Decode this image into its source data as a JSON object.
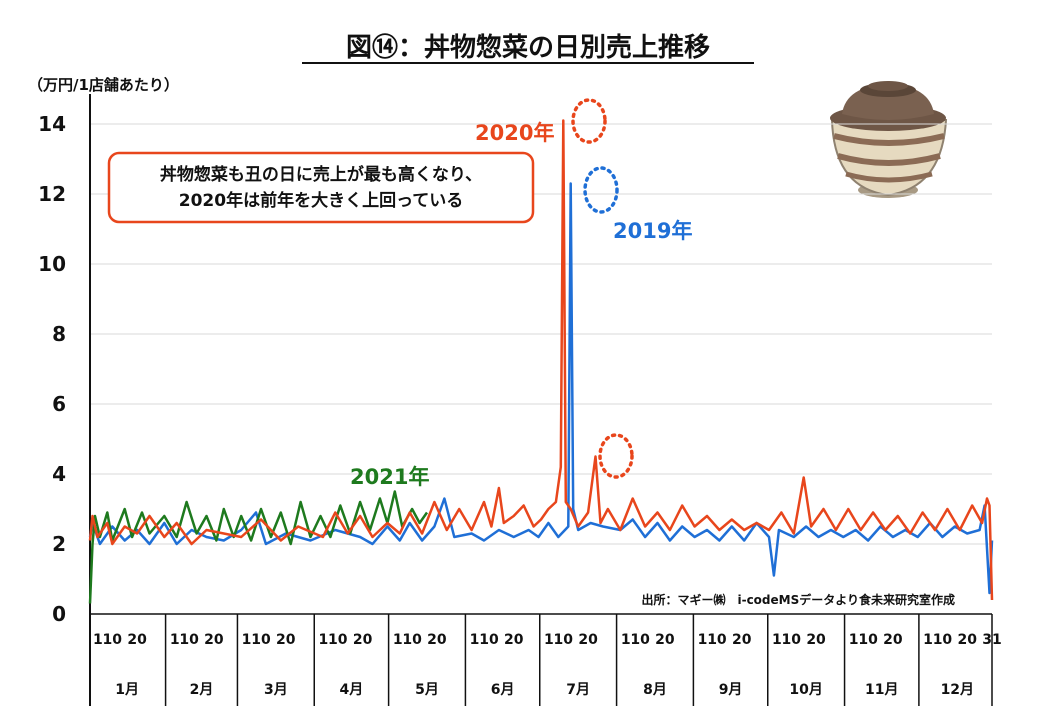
{
  "chart_data": {
    "type": "line",
    "title": "図⑭：丼物惣菜の日別売上推移",
    "unit_label": "（万円/1店舗あたり）",
    "ylim": [
      0,
      14
    ],
    "yticks": [
      "0",
      "2",
      "4",
      "6",
      "8",
      "10",
      "12",
      "14"
    ],
    "x_day_labels": [
      "1",
      "10",
      "20"
    ],
    "x_end_label": "31",
    "months": [
      "1月",
      "2月",
      "3月",
      "4月",
      "5月",
      "6月",
      "7月",
      "8月",
      "9月",
      "10月",
      "11月",
      "12月"
    ],
    "grid": true,
    "series": [
      {
        "name": "2020年",
        "color": "#e8461c",
        "points": [
          [
            1,
            2.1
          ],
          [
            2,
            2.8
          ],
          [
            4,
            2.2
          ],
          [
            8,
            2.6
          ],
          [
            10,
            2.0
          ],
          [
            15,
            2.5
          ],
          [
            20,
            2.3
          ],
          [
            25,
            2.8
          ],
          [
            31,
            2.2
          ],
          [
            36,
            2.6
          ],
          [
            42,
            2.0
          ],
          [
            48,
            2.4
          ],
          [
            55,
            2.3
          ],
          [
            62,
            2.2
          ],
          [
            70,
            2.7
          ],
          [
            78,
            2.1
          ],
          [
            85,
            2.5
          ],
          [
            95,
            2.2
          ],
          [
            100,
            2.9
          ],
          [
            105,
            2.3
          ],
          [
            110,
            2.8
          ],
          [
            115,
            2.2
          ],
          [
            121,
            2.6
          ],
          [
            126,
            2.3
          ],
          [
            130,
            2.9
          ],
          [
            135,
            2.3
          ],
          [
            140,
            3.2
          ],
          [
            145,
            2.4
          ],
          [
            150,
            3.0
          ],
          [
            155,
            2.4
          ],
          [
            160,
            3.2
          ],
          [
            163,
            2.5
          ],
          [
            166,
            3.6
          ],
          [
            168,
            2.6
          ],
          [
            172,
            2.8
          ],
          [
            176,
            3.1
          ],
          [
            180,
            2.5
          ],
          [
            183,
            2.7
          ],
          [
            186,
            3.0
          ],
          [
            189,
            3.2
          ],
          [
            191,
            4.2
          ],
          [
            192,
            14.1
          ],
          [
            193,
            3.2
          ],
          [
            195,
            3.0
          ],
          [
            198,
            2.5
          ],
          [
            202,
            2.9
          ],
          [
            205,
            4.5
          ],
          [
            207,
            2.6
          ],
          [
            210,
            3.0
          ],
          [
            215,
            2.4
          ],
          [
            220,
            3.3
          ],
          [
            225,
            2.5
          ],
          [
            230,
            2.9
          ],
          [
            235,
            2.4
          ],
          [
            240,
            3.1
          ],
          [
            245,
            2.5
          ],
          [
            250,
            2.8
          ],
          [
            255,
            2.4
          ],
          [
            260,
            2.7
          ],
          [
            265,
            2.4
          ],
          [
            270,
            2.6
          ],
          [
            275,
            2.4
          ],
          [
            280,
            2.9
          ],
          [
            285,
            2.3
          ],
          [
            289,
            3.9
          ],
          [
            292,
            2.5
          ],
          [
            297,
            3.0
          ],
          [
            302,
            2.4
          ],
          [
            307,
            3.0
          ],
          [
            312,
            2.4
          ],
          [
            317,
            2.9
          ],
          [
            322,
            2.4
          ],
          [
            327,
            2.8
          ],
          [
            332,
            2.3
          ],
          [
            337,
            2.9
          ],
          [
            342,
            2.4
          ],
          [
            347,
            3.0
          ],
          [
            352,
            2.4
          ],
          [
            357,
            3.1
          ],
          [
            361,
            2.6
          ],
          [
            363,
            3.3
          ],
          [
            364,
            3.1
          ],
          [
            365,
            0.4
          ]
        ]
      },
      {
        "name": "2019年",
        "color": "#1f6fd6",
        "points": [
          [
            1,
            2.2
          ],
          [
            2,
            2.6
          ],
          [
            5,
            2.0
          ],
          [
            10,
            2.5
          ],
          [
            15,
            2.1
          ],
          [
            20,
            2.4
          ],
          [
            25,
            2.0
          ],
          [
            31,
            2.6
          ],
          [
            36,
            2.0
          ],
          [
            42,
            2.4
          ],
          [
            48,
            2.2
          ],
          [
            55,
            2.1
          ],
          [
            62,
            2.4
          ],
          [
            68,
            2.9
          ],
          [
            72,
            2.0
          ],
          [
            80,
            2.3
          ],
          [
            90,
            2.1
          ],
          [
            100,
            2.4
          ],
          [
            110,
            2.2
          ],
          [
            115,
            2.0
          ],
          [
            121,
            2.5
          ],
          [
            126,
            2.1
          ],
          [
            130,
            2.6
          ],
          [
            135,
            2.1
          ],
          [
            140,
            2.5
          ],
          [
            144,
            3.3
          ],
          [
            148,
            2.2
          ],
          [
            155,
            2.3
          ],
          [
            160,
            2.1
          ],
          [
            166,
            2.4
          ],
          [
            172,
            2.2
          ],
          [
            178,
            2.4
          ],
          [
            182,
            2.2
          ],
          [
            186,
            2.6
          ],
          [
            190,
            2.2
          ],
          [
            194,
            2.5
          ],
          [
            195,
            12.3
          ],
          [
            196,
            3.0
          ],
          [
            198,
            2.4
          ],
          [
            203,
            2.6
          ],
          [
            208,
            2.5
          ],
          [
            215,
            2.4
          ],
          [
            220,
            2.7
          ],
          [
            225,
            2.2
          ],
          [
            230,
            2.6
          ],
          [
            235,
            2.1
          ],
          [
            240,
            2.5
          ],
          [
            245,
            2.2
          ],
          [
            250,
            2.4
          ],
          [
            255,
            2.1
          ],
          [
            260,
            2.5
          ],
          [
            265,
            2.1
          ],
          [
            270,
            2.6
          ],
          [
            275,
            2.2
          ],
          [
            277,
            1.1
          ],
          [
            279,
            2.4
          ],
          [
            285,
            2.2
          ],
          [
            290,
            2.5
          ],
          [
            295,
            2.2
          ],
          [
            300,
            2.4
          ],
          [
            305,
            2.2
          ],
          [
            310,
            2.4
          ],
          [
            315,
            2.1
          ],
          [
            320,
            2.5
          ],
          [
            325,
            2.2
          ],
          [
            330,
            2.4
          ],
          [
            335,
            2.2
          ],
          [
            340,
            2.6
          ],
          [
            345,
            2.2
          ],
          [
            350,
            2.5
          ],
          [
            355,
            2.3
          ],
          [
            360,
            2.4
          ],
          [
            362,
            3.1
          ],
          [
            364,
            0.6
          ],
          [
            365,
            2.1
          ]
        ]
      },
      {
        "name": "2021年",
        "color": "#1e7a1e",
        "points": [
          [
            1,
            0.3
          ],
          [
            2,
            2.0
          ],
          [
            3,
            2.8
          ],
          [
            5,
            2.2
          ],
          [
            8,
            2.9
          ],
          [
            10,
            2.1
          ],
          [
            15,
            3.0
          ],
          [
            18,
            2.2
          ],
          [
            22,
            2.9
          ],
          [
            25,
            2.3
          ],
          [
            31,
            2.8
          ],
          [
            36,
            2.2
          ],
          [
            40,
            3.2
          ],
          [
            44,
            2.3
          ],
          [
            48,
            2.8
          ],
          [
            52,
            2.1
          ],
          [
            55,
            3.0
          ],
          [
            59,
            2.2
          ],
          [
            62,
            2.8
          ],
          [
            66,
            2.1
          ],
          [
            70,
            3.0
          ],
          [
            74,
            2.2
          ],
          [
            78,
            2.9
          ],
          [
            82,
            2.0
          ],
          [
            86,
            3.2
          ],
          [
            90,
            2.2
          ],
          [
            94,
            2.8
          ],
          [
            98,
            2.2
          ],
          [
            102,
            3.1
          ],
          [
            106,
            2.3
          ],
          [
            110,
            3.2
          ],
          [
            114,
            2.4
          ],
          [
            118,
            3.3
          ],
          [
            121,
            2.6
          ],
          [
            124,
            3.5
          ],
          [
            127,
            2.5
          ],
          [
            131,
            3.0
          ],
          [
            134,
            2.6
          ],
          [
            137,
            2.9
          ]
        ]
      }
    ],
    "annotations": {
      "callout_line1": "丼物惣菜も丑の日に売上が最も高くなり、",
      "callout_line2": "2020年は前年を大きく上回っている",
      "source": "出所：マギー㈱　i-codeMSデータより食未来研究室作成"
    }
  }
}
